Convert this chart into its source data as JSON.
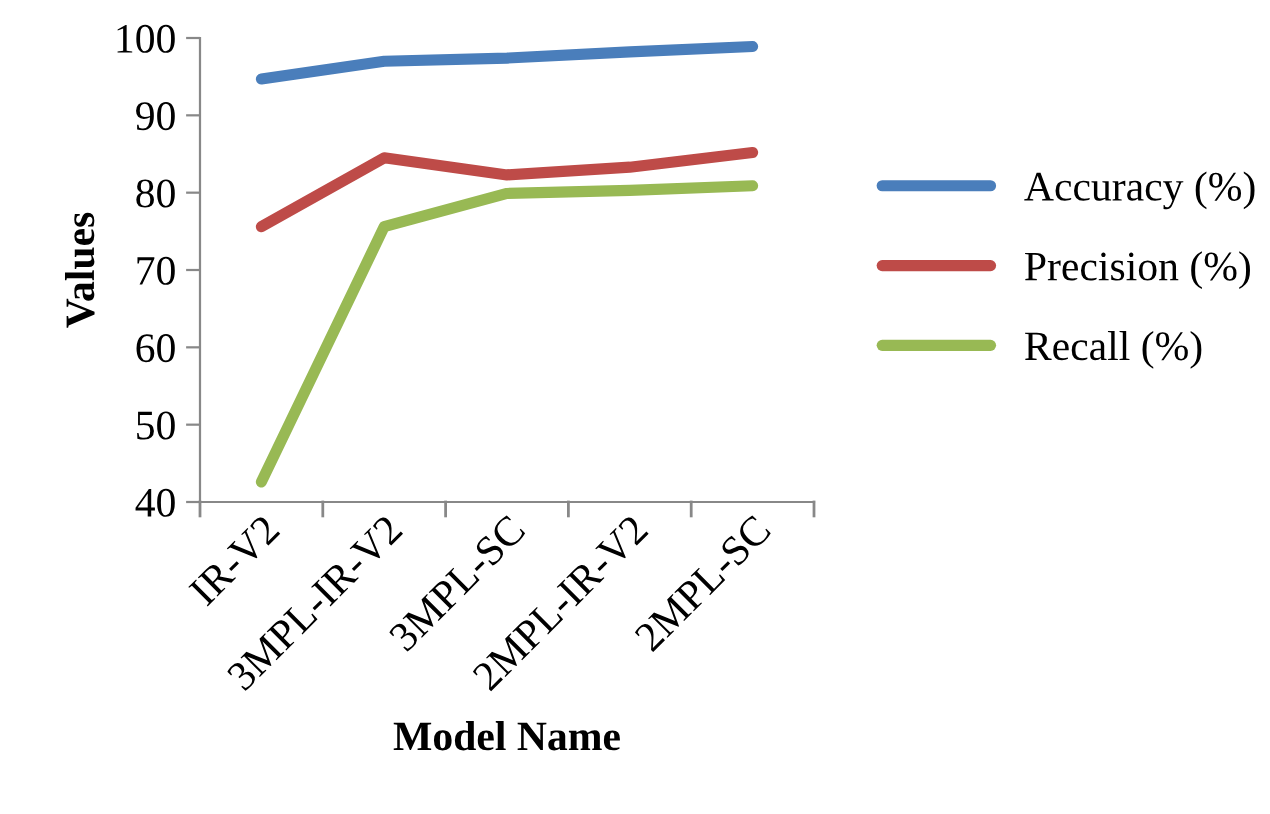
{
  "chart_data": {
    "type": "line",
    "xlabel": "Model Name",
    "ylabel": "Values",
    "categories": [
      "IR-V2",
      "3MPL-IR-V2",
      "3MPL-SC",
      "2MPL-IR-V2",
      "2MPL-SC"
    ],
    "ylim": [
      40,
      100
    ],
    "yticks": [
      40,
      50,
      60,
      70,
      80,
      90,
      100
    ],
    "grid": false,
    "legend": "right",
    "marker": "none",
    "line_style": "solid",
    "series": [
      {
        "name": "Accuracy (%)",
        "color": "#4a7ebb",
        "values": [
          94.7,
          97.0,
          97.4,
          98.2,
          98.9
        ]
      },
      {
        "name": "Precision (%)",
        "color": "#be4b48",
        "values": [
          75.6,
          84.5,
          82.3,
          83.3,
          85.2
        ]
      },
      {
        "name": "Recall (%)",
        "color": "#98b954",
        "values": [
          42.6,
          75.6,
          79.9,
          80.3,
          80.9
        ]
      }
    ]
  }
}
